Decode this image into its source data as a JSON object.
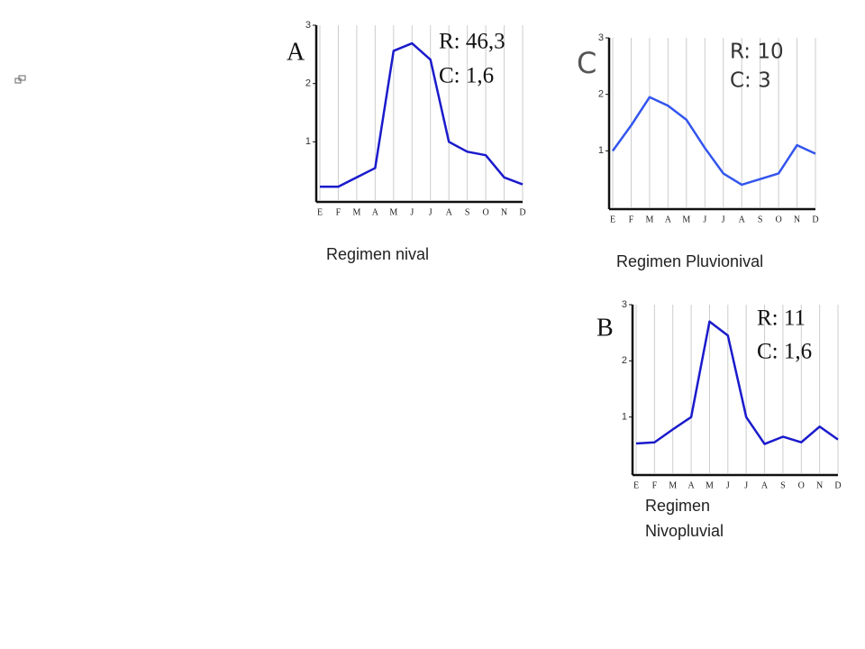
{
  "chart_data": [
    {
      "type": "line",
      "title": "A",
      "annotations": [
        "R: 46,3",
        "C: 1,6"
      ],
      "caption": "Regimen nival",
      "categories": [
        "E",
        "F",
        "M",
        "A",
        "M",
        "J",
        "J",
        "A",
        "S",
        "O",
        "N",
        "D"
      ],
      "series": [
        {
          "color": "#1a1acc",
          "values": [
            0.23,
            0.23,
            0.39,
            0.55,
            2.56,
            2.69,
            2.41,
            1.0,
            0.83,
            0.77,
            0.39,
            0.27
          ]
        }
      ],
      "ylim": [
        0,
        3
      ],
      "yticks": [
        1,
        2,
        3
      ],
      "grid": true
    },
    {
      "type": "line",
      "title": "C",
      "annotations": [
        "R: 10",
        "C: 3"
      ],
      "caption": "Regimen Pluvionival",
      "categories": [
        "E",
        "F",
        "M",
        "A",
        "M",
        "J",
        "J",
        "A",
        "S",
        "O",
        "N",
        "D"
      ],
      "series": [
        {
          "color": "#3355ee",
          "values": [
            1.0,
            1.45,
            1.95,
            1.8,
            1.55,
            1.05,
            0.6,
            0.4,
            0.5,
            0.6,
            1.1,
            0.95
          ]
        }
      ],
      "ylim": [
        0,
        3
      ],
      "yticks": [
        1,
        2,
        3
      ],
      "grid": true
    },
    {
      "type": "line",
      "title": "B",
      "annotations": [
        "R: 11",
        "C: 1,6"
      ],
      "caption": "Regimen Nivopluvial",
      "categories": [
        "E",
        "F",
        "M",
        "A",
        "M",
        "J",
        "J",
        "A",
        "S",
        "O",
        "N",
        "D"
      ],
      "series": [
        {
          "color": "#1a1acc",
          "values": [
            0.53,
            0.55,
            0.78,
            1.0,
            2.7,
            2.45,
            1.0,
            0.52,
            0.65,
            0.55,
            0.83,
            0.6
          ]
        }
      ],
      "ylim": [
        0,
        3
      ],
      "yticks": [
        1,
        2,
        3
      ],
      "grid": true
    }
  ]
}
